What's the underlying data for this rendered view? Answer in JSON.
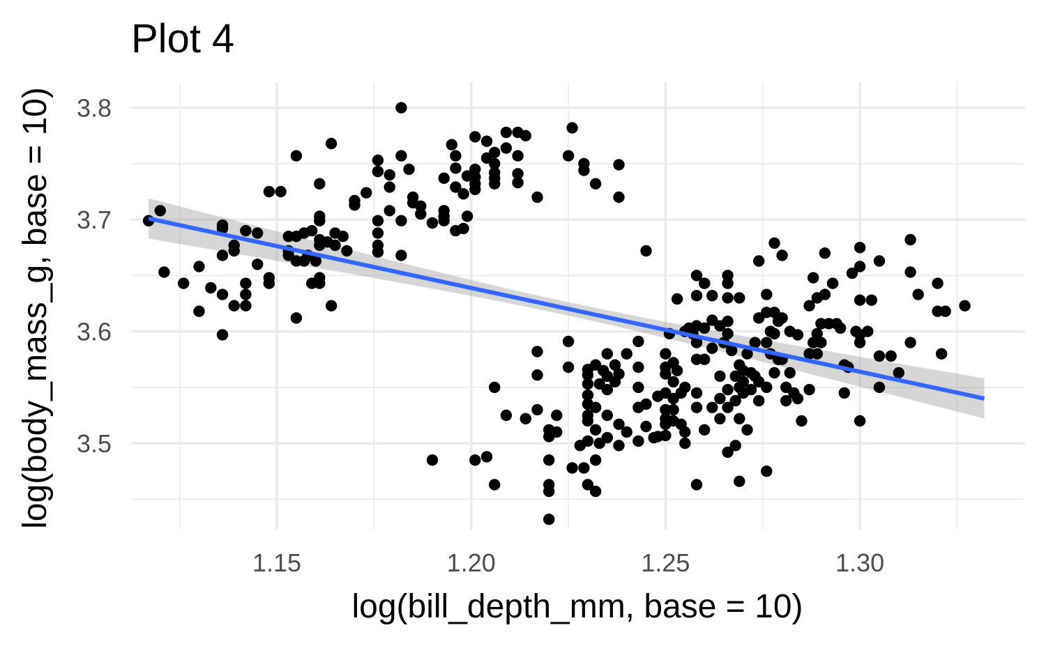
{
  "chart_data": {
    "type": "scatter",
    "title": "Plot 4",
    "xlabel": "log(bill_depth_mm, base = 10)",
    "ylabel": "log(body_mass_g, base = 10)",
    "xlim": [
      1.1125,
      1.3425
    ],
    "ylim": [
      3.4228,
      3.8228
    ],
    "x_ticks": [
      1.15,
      1.2,
      1.25,
      1.3
    ],
    "x_tick_labels": [
      "1.15",
      "1.20",
      "1.25",
      "1.30"
    ],
    "y_ticks": [
      3.5,
      3.6,
      3.7,
      3.8
    ],
    "y_tick_labels": [
      "3.5",
      "3.6",
      "3.7",
      "3.8"
    ],
    "x_minor_ticks": [
      1.125,
      1.175,
      1.225,
      1.275,
      1.325
    ],
    "y_minor_ticks": [
      3.45,
      3.55,
      3.65,
      3.75
    ],
    "grid": true,
    "colors": {
      "points": "#000000",
      "fit_line": "#3366ff",
      "confidence_band": "#999999"
    },
    "trend_line": {
      "method": "linear fit with confidence band",
      "start": {
        "x": 1.117,
        "y": 3.701
      },
      "end": {
        "x": 1.332,
        "y": 3.54
      },
      "band_halfwidth_ends": 0.018,
      "band_halfwidth_center": 0.006
    },
    "points": [
      [
        1.117,
        3.699
      ],
      [
        1.12,
        3.708
      ],
      [
        1.121,
        3.653
      ],
      [
        1.126,
        3.643
      ],
      [
        1.13,
        3.658
      ],
      [
        1.13,
        3.618
      ],
      [
        1.133,
        3.639
      ],
      [
        1.136,
        3.695
      ],
      [
        1.136,
        3.692
      ],
      [
        1.136,
        3.668
      ],
      [
        1.136,
        3.633
      ],
      [
        1.136,
        3.597
      ],
      [
        1.139,
        3.677
      ],
      [
        1.139,
        3.672
      ],
      [
        1.139,
        3.623
      ],
      [
        1.142,
        3.69
      ],
      [
        1.142,
        3.643
      ],
      [
        1.142,
        3.633
      ],
      [
        1.142,
        3.623
      ],
      [
        1.145,
        3.688
      ],
      [
        1.145,
        3.66
      ],
      [
        1.148,
        3.725
      ],
      [
        1.148,
        3.648
      ],
      [
        1.148,
        3.643
      ],
      [
        1.151,
        3.725
      ],
      [
        1.153,
        3.685
      ],
      [
        1.153,
        3.672
      ],
      [
        1.153,
        3.668
      ],
      [
        1.155,
        3.757
      ],
      [
        1.155,
        3.685
      ],
      [
        1.155,
        3.663
      ],
      [
        1.155,
        3.612
      ],
      [
        1.157,
        3.688
      ],
      [
        1.157,
        3.663
      ],
      [
        1.158,
        3.668
      ],
      [
        1.159,
        3.69
      ],
      [
        1.159,
        3.643
      ],
      [
        1.16,
        3.663
      ],
      [
        1.161,
        3.732
      ],
      [
        1.161,
        3.703
      ],
      [
        1.161,
        3.699
      ],
      [
        1.161,
        3.682
      ],
      [
        1.161,
        3.677
      ],
      [
        1.161,
        3.648
      ],
      [
        1.161,
        3.643
      ],
      [
        1.163,
        3.68
      ],
      [
        1.164,
        3.768
      ],
      [
        1.164,
        3.623
      ],
      [
        1.165,
        3.688
      ],
      [
        1.165,
        3.677
      ],
      [
        1.167,
        3.685
      ],
      [
        1.168,
        3.672
      ],
      [
        1.17,
        3.717
      ],
      [
        1.17,
        3.713
      ],
      [
        1.173,
        3.724
      ],
      [
        1.176,
        3.753
      ],
      [
        1.176,
        3.743
      ],
      [
        1.176,
        3.699
      ],
      [
        1.176,
        3.688
      ],
      [
        1.176,
        3.677
      ],
      [
        1.176,
        3.671
      ],
      [
        1.179,
        3.74
      ],
      [
        1.179,
        3.729
      ],
      [
        1.179,
        3.708
      ],
      [
        1.182,
        3.8
      ],
      [
        1.182,
        3.757
      ],
      [
        1.182,
        3.699
      ],
      [
        1.182,
        3.668
      ],
      [
        1.184,
        3.745
      ],
      [
        1.185,
        3.72
      ],
      [
        1.185,
        3.715
      ],
      [
        1.187,
        3.712
      ],
      [
        1.187,
        3.705
      ],
      [
        1.19,
        3.697
      ],
      [
        1.193,
        3.708
      ],
      [
        1.193,
        3.737
      ],
      [
        1.193,
        3.699
      ],
      [
        1.193,
        3.703
      ],
      [
        1.195,
        3.767
      ],
      [
        1.196,
        3.757
      ],
      [
        1.196,
        3.746
      ],
      [
        1.196,
        3.729
      ],
      [
        1.196,
        3.69
      ],
      [
        1.198,
        3.723
      ],
      [
        1.198,
        3.692
      ],
      [
        1.199,
        3.739
      ],
      [
        1.199,
        3.703
      ],
      [
        1.201,
        3.774
      ],
      [
        1.201,
        3.745
      ],
      [
        1.201,
        3.738
      ],
      [
        1.201,
        3.732
      ],
      [
        1.201,
        3.727
      ],
      [
        1.204,
        3.77
      ],
      [
        1.204,
        3.755
      ],
      [
        1.206,
        3.76
      ],
      [
        1.206,
        3.75
      ],
      [
        1.206,
        3.742
      ],
      [
        1.206,
        3.737
      ],
      [
        1.206,
        3.732
      ],
      [
        1.209,
        3.778
      ],
      [
        1.209,
        3.764
      ],
      [
        1.212,
        3.778
      ],
      [
        1.212,
        3.757
      ],
      [
        1.212,
        3.741
      ],
      [
        1.212,
        3.733
      ],
      [
        1.214,
        3.775
      ],
      [
        1.217,
        3.72
      ],
      [
        1.225,
        3.757
      ],
      [
        1.226,
        3.782
      ],
      [
        1.229,
        3.75
      ],
      [
        1.229,
        3.744
      ],
      [
        1.232,
        3.732
      ],
      [
        1.238,
        3.749
      ],
      [
        1.238,
        3.72
      ],
      [
        1.245,
        3.672
      ],
      [
        1.217,
        3.582
      ],
      [
        1.217,
        3.561
      ],
      [
        1.214,
        3.522
      ],
      [
        1.206,
        3.55
      ],
      [
        1.209,
        3.525
      ],
      [
        1.206,
        3.463
      ],
      [
        1.204,
        3.488
      ],
      [
        1.201,
        3.485
      ],
      [
        1.19,
        3.485
      ],
      [
        1.217,
        3.53
      ],
      [
        1.22,
        3.512
      ],
      [
        1.222,
        3.51
      ],
      [
        1.22,
        3.506
      ],
      [
        1.22,
        3.485
      ],
      [
        1.22,
        3.463
      ],
      [
        1.22,
        3.457
      ],
      [
        1.22,
        3.432
      ],
      [
        1.222,
        3.525
      ],
      [
        1.225,
        3.591
      ],
      [
        1.225,
        3.568
      ],
      [
        1.226,
        3.478
      ],
      [
        1.228,
        3.498
      ],
      [
        1.229,
        3.478
      ],
      [
        1.23,
        3.502
      ],
      [
        1.23,
        3.566
      ],
      [
        1.23,
        3.561
      ],
      [
        1.23,
        3.553
      ],
      [
        1.23,
        3.543
      ],
      [
        1.23,
        3.535
      ],
      [
        1.23,
        3.525
      ],
      [
        1.23,
        3.52
      ],
      [
        1.23,
        3.463
      ],
      [
        1.232,
        3.57
      ],
      [
        1.232,
        3.532
      ],
      [
        1.232,
        3.512
      ],
      [
        1.232,
        3.485
      ],
      [
        1.232,
        3.457
      ],
      [
        1.233,
        3.553
      ],
      [
        1.233,
        3.5
      ],
      [
        1.234,
        3.565
      ],
      [
        1.235,
        3.58
      ],
      [
        1.235,
        3.56
      ],
      [
        1.235,
        3.548
      ],
      [
        1.235,
        3.525
      ],
      [
        1.235,
        3.505
      ],
      [
        1.237,
        3.57
      ],
      [
        1.237,
        3.555
      ],
      [
        1.238,
        3.562
      ],
      [
        1.238,
        3.517
      ],
      [
        1.238,
        3.498
      ],
      [
        1.24,
        3.58
      ],
      [
        1.24,
        3.51
      ],
      [
        1.243,
        3.568
      ],
      [
        1.243,
        3.55
      ],
      [
        1.243,
        3.532
      ],
      [
        1.243,
        3.502
      ],
      [
        1.243,
        3.591
      ],
      [
        1.245,
        3.535
      ],
      [
        1.245,
        3.515
      ],
      [
        1.247,
        3.505
      ],
      [
        1.248,
        3.542
      ],
      [
        1.248,
        3.506
      ],
      [
        1.25,
        3.58
      ],
      [
        1.25,
        3.568
      ],
      [
        1.25,
        3.562
      ],
      [
        1.25,
        3.545
      ],
      [
        1.25,
        3.53
      ],
      [
        1.25,
        3.522
      ],
      [
        1.25,
        3.517
      ],
      [
        1.25,
        3.507
      ],
      [
        1.251,
        3.598
      ],
      [
        1.252,
        3.572
      ],
      [
        1.252,
        3.555
      ],
      [
        1.252,
        3.54
      ],
      [
        1.252,
        3.53
      ],
      [
        1.252,
        3.52
      ],
      [
        1.253,
        3.629
      ],
      [
        1.253,
        3.565
      ],
      [
        1.254,
        3.545
      ],
      [
        1.254,
        3.517
      ],
      [
        1.255,
        3.6
      ],
      [
        1.255,
        3.55
      ],
      [
        1.255,
        3.51
      ],
      [
        1.255,
        3.5
      ],
      [
        1.256,
        3.603
      ],
      [
        1.257,
        3.598
      ],
      [
        1.258,
        3.65
      ],
      [
        1.258,
        3.632
      ],
      [
        1.258,
        3.605
      ],
      [
        1.258,
        3.59
      ],
      [
        1.258,
        3.575
      ],
      [
        1.258,
        3.545
      ],
      [
        1.258,
        3.532
      ],
      [
        1.258,
        3.463
      ],
      [
        1.26,
        3.643
      ],
      [
        1.26,
        3.603
      ],
      [
        1.26,
        3.575
      ],
      [
        1.26,
        3.512
      ],
      [
        1.262,
        3.632
      ],
      [
        1.262,
        3.61
      ],
      [
        1.262,
        3.585
      ],
      [
        1.262,
        3.532
      ],
      [
        1.264,
        3.605
      ],
      [
        1.264,
        3.56
      ],
      [
        1.264,
        3.54
      ],
      [
        1.264,
        3.522
      ],
      [
        1.265,
        3.59
      ],
      [
        1.266,
        3.65
      ],
      [
        1.266,
        3.643
      ],
      [
        1.266,
        3.63
      ],
      [
        1.266,
        3.609
      ],
      [
        1.266,
        3.598
      ],
      [
        1.266,
        3.548
      ],
      [
        1.266,
        3.532
      ],
      [
        1.266,
        3.492
      ],
      [
        1.267,
        3.583
      ],
      [
        1.268,
        3.56
      ],
      [
        1.268,
        3.538
      ],
      [
        1.268,
        3.498
      ],
      [
        1.269,
        3.63
      ],
      [
        1.269,
        3.57
      ],
      [
        1.269,
        3.55
      ],
      [
        1.269,
        3.522
      ],
      [
        1.269,
        3.466
      ],
      [
        1.27,
        3.565
      ],
      [
        1.27,
        3.555
      ],
      [
        1.27,
        3.545
      ],
      [
        1.271,
        3.58
      ],
      [
        1.271,
        3.512
      ],
      [
        1.272,
        3.563
      ],
      [
        1.272,
        3.548
      ],
      [
        1.273,
        3.59
      ],
      [
        1.273,
        3.56
      ],
      [
        1.274,
        3.663
      ],
      [
        1.274,
        3.612
      ],
      [
        1.274,
        3.555
      ],
      [
        1.274,
        3.538
      ],
      [
        1.276,
        3.633
      ],
      [
        1.276,
        3.617
      ],
      [
        1.276,
        3.59
      ],
      [
        1.276,
        3.55
      ],
      [
        1.276,
        3.475
      ],
      [
        1.277,
        3.6
      ],
      [
        1.277,
        3.58
      ],
      [
        1.278,
        3.679
      ],
      [
        1.278,
        3.617
      ],
      [
        1.278,
        3.598
      ],
      [
        1.278,
        3.563
      ],
      [
        1.279,
        3.609
      ],
      [
        1.279,
        3.575
      ],
      [
        1.28,
        3.668
      ],
      [
        1.28,
        3.612
      ],
      [
        1.28,
        3.575
      ],
      [
        1.281,
        3.55
      ],
      [
        1.281,
        3.538
      ],
      [
        1.282,
        3.6
      ],
      [
        1.282,
        3.563
      ],
      [
        1.283,
        3.545
      ],
      [
        1.284,
        3.597
      ],
      [
        1.284,
        3.54
      ],
      [
        1.285,
        3.52
      ],
      [
        1.287,
        3.58
      ],
      [
        1.287,
        3.548
      ],
      [
        1.287,
        3.623
      ],
      [
        1.288,
        3.648
      ],
      [
        1.288,
        3.59
      ],
      [
        1.289,
        3.63
      ],
      [
        1.289,
        3.598
      ],
      [
        1.289,
        3.58
      ],
      [
        1.29,
        3.607
      ],
      [
        1.29,
        3.59
      ],
      [
        1.291,
        3.633
      ],
      [
        1.291,
        3.67
      ],
      [
        1.292,
        3.607
      ],
      [
        1.293,
        3.643
      ],
      [
        1.294,
        3.607
      ],
      [
        1.295,
        3.603
      ],
      [
        1.296,
        3.57
      ],
      [
        1.296,
        3.545
      ],
      [
        1.297,
        3.568
      ],
      [
        1.298,
        3.652
      ],
      [
        1.299,
        3.6
      ],
      [
        1.3,
        3.658
      ],
      [
        1.3,
        3.675
      ],
      [
        1.3,
        3.628
      ],
      [
        1.3,
        3.597
      ],
      [
        1.3,
        3.59
      ],
      [
        1.3,
        3.52
      ],
      [
        1.302,
        3.6
      ],
      [
        1.303,
        3.628
      ],
      [
        1.305,
        3.663
      ],
      [
        1.305,
        3.578
      ],
      [
        1.305,
        3.55
      ],
      [
        1.308,
        3.578
      ],
      [
        1.31,
        3.563
      ],
      [
        1.313,
        3.682
      ],
      [
        1.313,
        3.653
      ],
      [
        1.313,
        3.59
      ],
      [
        1.315,
        3.633
      ],
      [
        1.32,
        3.643
      ],
      [
        1.32,
        3.618
      ],
      [
        1.321,
        3.58
      ],
      [
        1.322,
        3.618
      ],
      [
        1.327,
        3.623
      ],
      [
        1.26,
        3.643
      ]
    ]
  }
}
